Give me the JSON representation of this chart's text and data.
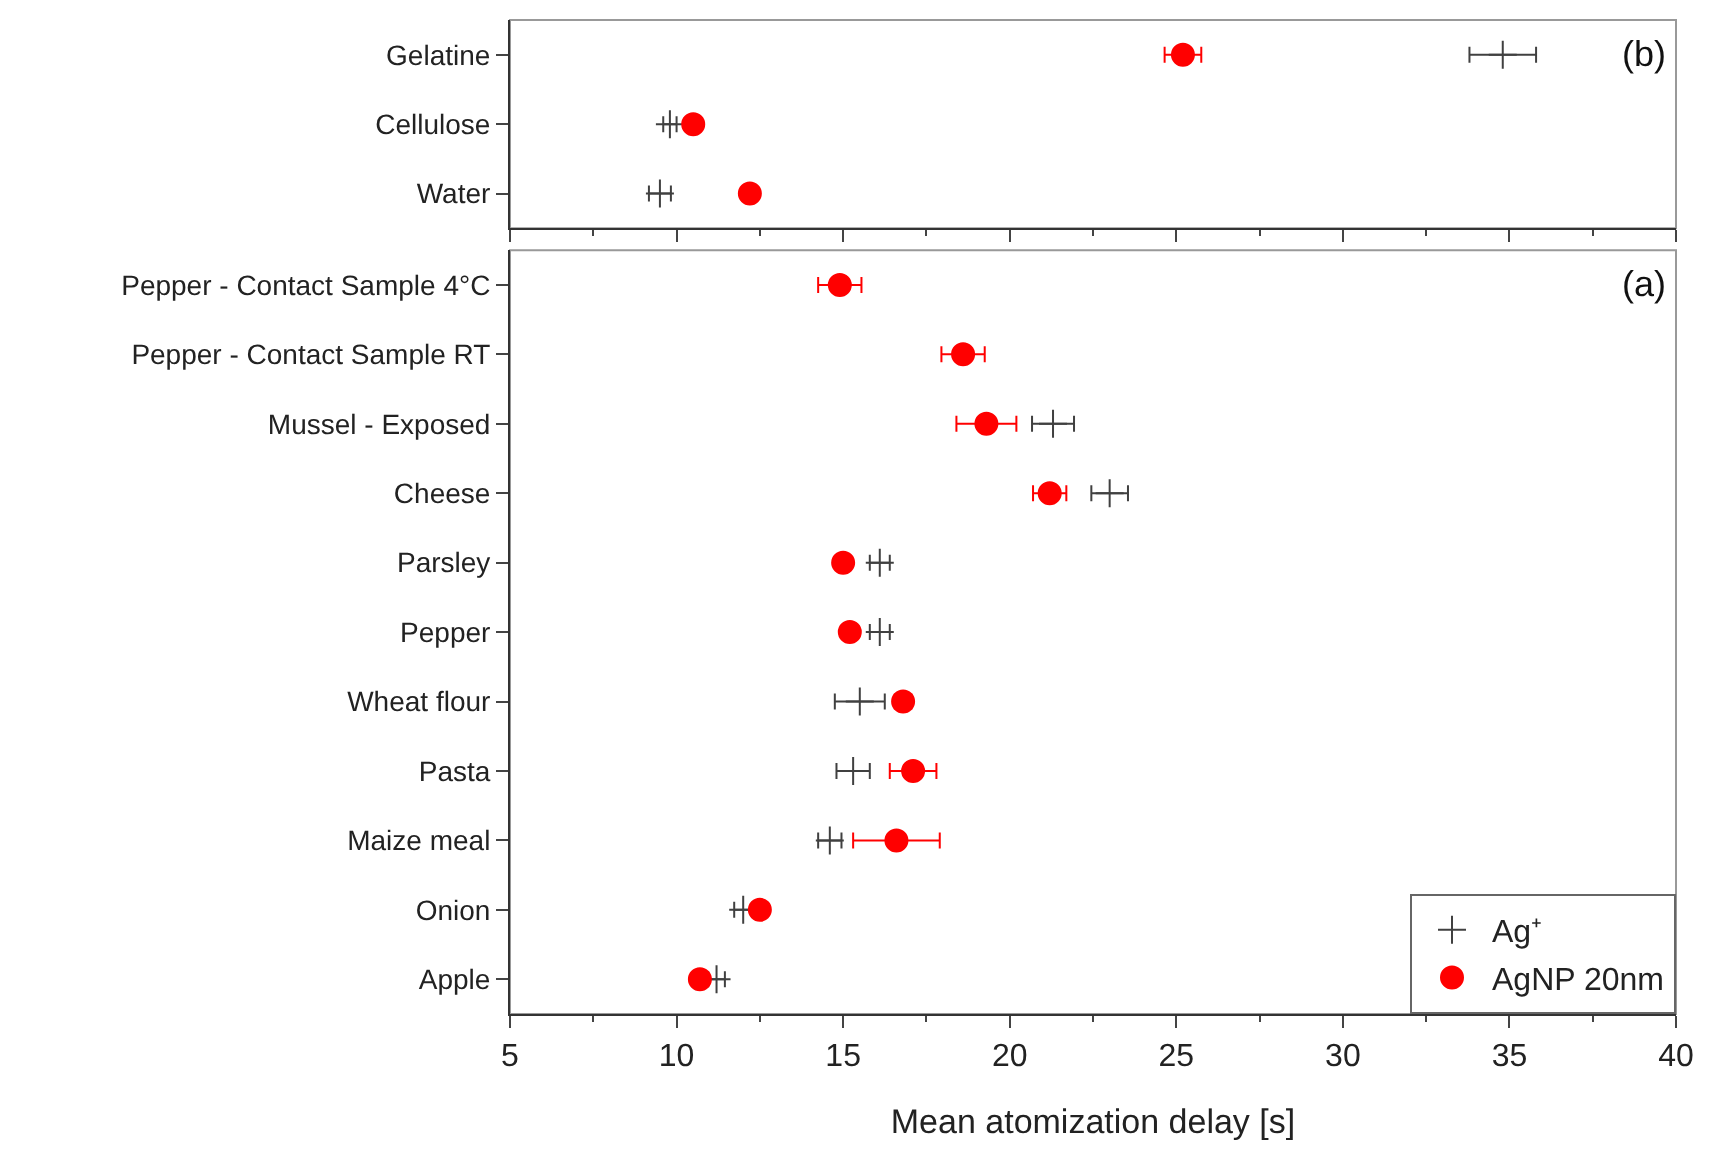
{
  "chart_data": [
    {
      "type": "scatter",
      "orientation": "horizontal",
      "categories": [
        "Gelatine",
        "Cellulose",
        "Water"
      ],
      "xlim": [
        5,
        40
      ],
      "xticks": [
        5,
        10,
        15,
        20,
        25,
        30,
        35,
        40
      ],
      "tick_labels": "y",
      "annotations": [
        "(b)"
      ],
      "series": [
        {
          "color": "#404040",
          "marker": "cross",
          "values": [
            34.8,
            9.8,
            9.5
          ],
          "errors": [
            1.0,
            0.2,
            0.33
          ]
        },
        {
          "color": "#ff0000",
          "marker": "circle",
          "values": [
            25.2,
            10.5,
            12.2
          ],
          "errors": [
            0.55,
            null,
            null
          ]
        }
      ]
    },
    {
      "type": "scatter",
      "orientation": "horizontal",
      "categories": [
        "Pepper - Contact Sample 4°C",
        "Pepper - Contact Sample RT",
        "Mussel - Exposed",
        "Cheese",
        "Parsley",
        "Pepper",
        "Wheat flour",
        "Pasta",
        "Maize meal",
        "Onion",
        "Apple"
      ],
      "xlim": [
        5,
        40
      ],
      "xticks": [
        5,
        10,
        15,
        20,
        25,
        30,
        35,
        40
      ],
      "xlabel": "Mean atomization delay [s]",
      "annotations": [
        "(a)"
      ],
      "legend": "bottom right",
      "series": [
        {
          "name": "Ag⁺",
          "color": "#404040",
          "marker": "cross",
          "values": [
            null,
            null,
            21.3,
            23.0,
            16.1,
            16.1,
            15.5,
            15.3,
            14.6,
            12.0,
            11.2
          ],
          "errors": [
            null,
            null,
            0.63,
            0.55,
            0.3,
            0.3,
            0.75,
            0.5,
            0.35,
            0.27,
            0.25
          ]
        },
        {
          "name": "AgNP 20nm",
          "color": "#ff0000",
          "marker": "circle",
          "values": [
            14.9,
            18.6,
            19.3,
            21.2,
            15.0,
            15.2,
            16.8,
            17.1,
            16.6,
            12.5,
            10.7
          ],
          "errors": [
            0.65,
            0.65,
            0.9,
            0.5,
            null,
            null,
            0.25,
            0.7,
            1.3,
            null,
            null
          ]
        }
      ]
    }
  ]
}
